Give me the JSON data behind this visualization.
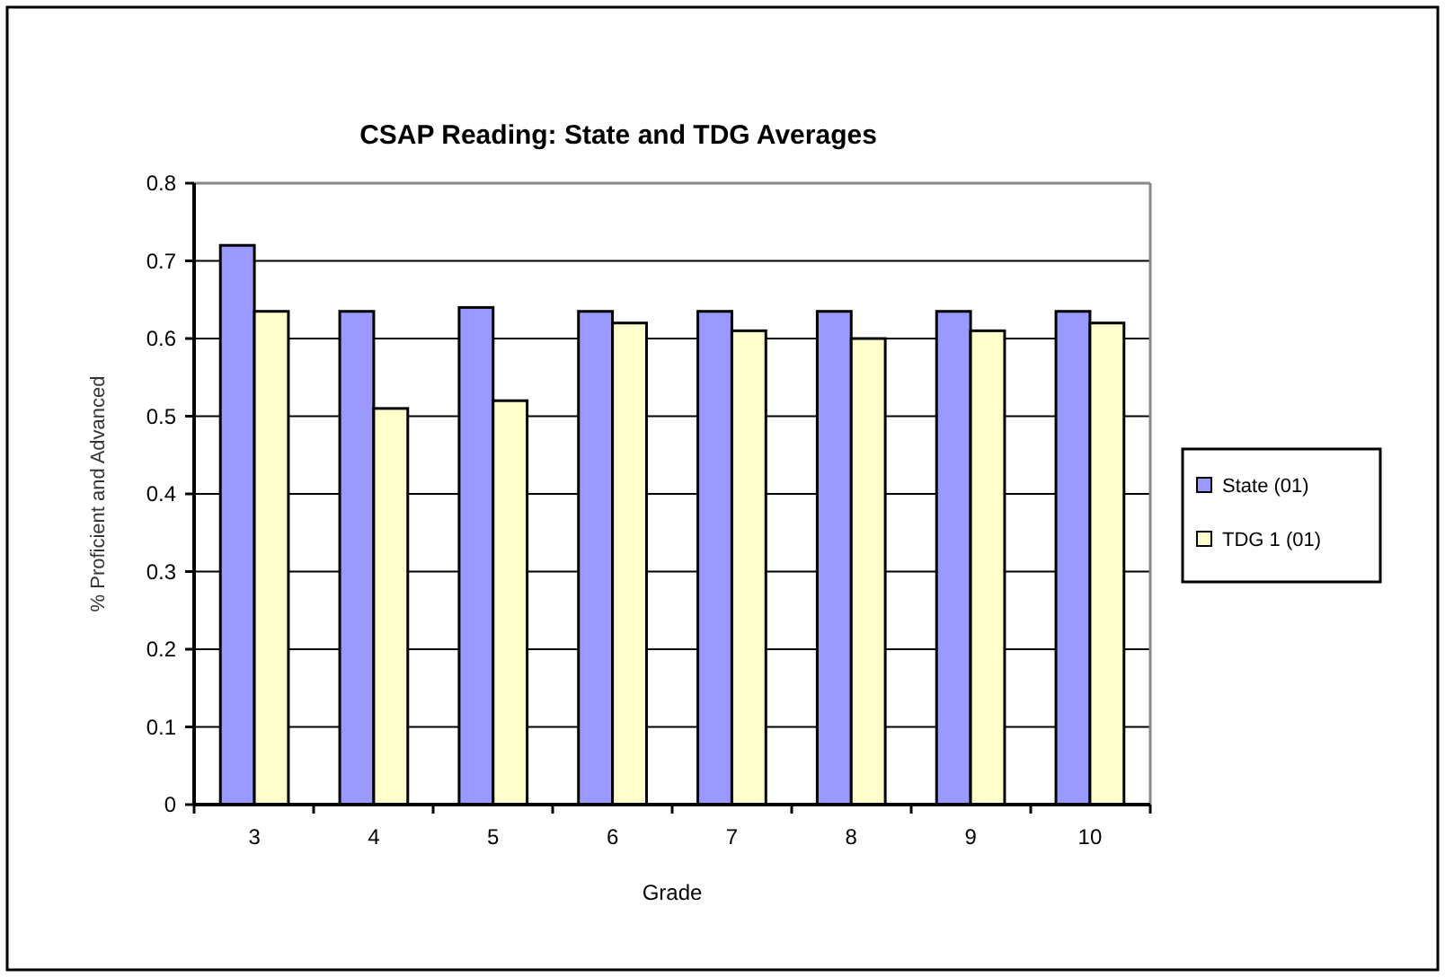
{
  "chart_data": {
    "type": "bar",
    "title": "CSAP Reading: State and TDG Averages",
    "xlabel": "Grade",
    "ylabel": "% Proficient and Advanced",
    "categories": [
      "3",
      "4",
      "5",
      "6",
      "7",
      "8",
      "9",
      "10"
    ],
    "series": [
      {
        "name": "State (01)",
        "color": "#9999ff",
        "values": [
          0.72,
          0.635,
          0.64,
          0.635,
          0.635,
          0.635,
          0.635,
          0.635
        ]
      },
      {
        "name": "TDG 1 (01)",
        "color": "#ffffcc",
        "values": [
          0.635,
          0.51,
          0.52,
          0.62,
          0.61,
          0.6,
          0.61,
          0.62
        ]
      }
    ],
    "ylim": [
      0,
      0.8
    ],
    "yticks": [
      0,
      0.1,
      0.2,
      0.3,
      0.4,
      0.5,
      0.6,
      0.7,
      0.8
    ],
    "grid": "y",
    "legend": "right"
  }
}
